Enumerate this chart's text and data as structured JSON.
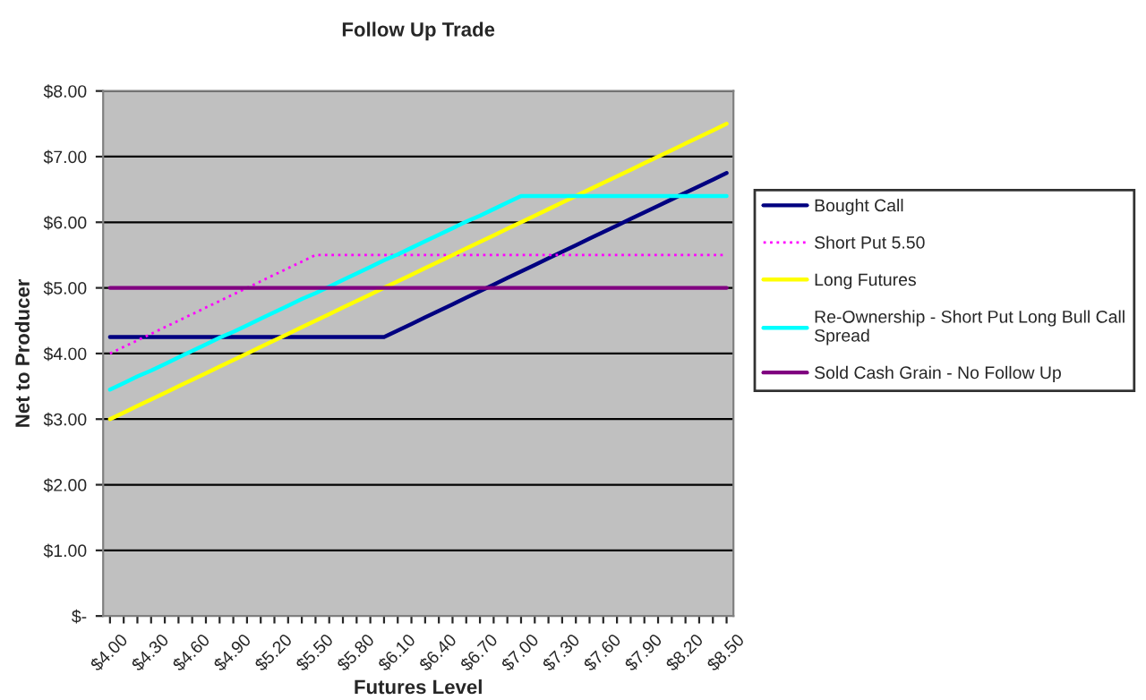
{
  "chart_data": {
    "type": "line",
    "title": "Follow Up Trade",
    "xlabel": "Futures Level",
    "ylabel": "Net to Producer",
    "categories": [
      "$4.00",
      null,
      null,
      "$4.30",
      null,
      null,
      "$4.60",
      null,
      null,
      "$4.90",
      null,
      null,
      "$5.20",
      null,
      null,
      "$5.50",
      null,
      null,
      "$5.80",
      null,
      null,
      "$6.10",
      null,
      null,
      "$6.40",
      null,
      null,
      "$6.70",
      null,
      null,
      "$7.00",
      null,
      null,
      "$7.30",
      null,
      null,
      "$7.60",
      null,
      null,
      "$7.90",
      null,
      null,
      "$8.20",
      null,
      null,
      "$8.50"
    ],
    "series": [
      {
        "name": "Bought Call",
        "color": "#000080",
        "line_style": "solid",
        "values": [
          4.25,
          4.25,
          4.25,
          4.25,
          4.25,
          4.25,
          4.25,
          4.25,
          4.25,
          4.25,
          4.25,
          4.25,
          4.25,
          4.25,
          4.25,
          4.25,
          4.25,
          4.25,
          4.25,
          4.25,
          4.25,
          4.35,
          4.45,
          4.55,
          4.65,
          4.75,
          4.85,
          4.95,
          5.05,
          5.15,
          5.25,
          5.35,
          5.45,
          5.55,
          5.65,
          5.75,
          5.85,
          5.95,
          6.05,
          6.15,
          6.25,
          6.35,
          6.45,
          6.55,
          6.65,
          6.75
        ]
      },
      {
        "name": "Short Put 5.50",
        "color": "#ff00ff",
        "line_style": "dotted",
        "values": [
          4.0,
          4.1,
          4.2,
          4.3,
          4.4,
          4.5,
          4.6,
          4.7,
          4.8,
          4.9,
          5.0,
          5.1,
          5.2,
          5.3,
          5.4,
          5.5,
          5.5,
          5.5,
          5.5,
          5.5,
          5.5,
          5.5,
          5.5,
          5.5,
          5.5,
          5.5,
          5.5,
          5.5,
          5.5,
          5.5,
          5.5,
          5.5,
          5.5,
          5.5,
          5.5,
          5.5,
          5.5,
          5.5,
          5.5,
          5.5,
          5.5,
          5.5,
          5.5,
          5.5,
          5.5,
          5.5
        ]
      },
      {
        "name": "Long Futures",
        "color": "#ffff00",
        "line_style": "solid",
        "values": [
          3.0,
          3.1,
          3.2,
          3.3,
          3.4,
          3.5,
          3.6,
          3.7,
          3.8,
          3.9,
          4.0,
          4.1,
          4.2,
          4.3,
          4.4,
          4.5,
          4.6,
          4.7,
          4.8,
          4.9,
          5.0,
          5.1,
          5.2,
          5.3,
          5.4,
          5.5,
          5.6,
          5.7,
          5.8,
          5.9,
          6.0,
          6.1,
          6.2,
          6.3,
          6.4,
          6.5,
          6.6,
          6.7,
          6.8,
          6.9,
          7.0,
          7.1,
          7.2,
          7.3,
          7.4,
          7.5
        ]
      },
      {
        "name": "Re-Ownership - Short Put Long Bull Call\nSpread",
        "color": "#00ffff",
        "line_style": "solid",
        "values": [
          3.45,
          3.55,
          3.65,
          3.74,
          3.84,
          3.94,
          4.04,
          4.14,
          4.24,
          4.33,
          4.43,
          4.53,
          4.63,
          4.73,
          4.83,
          4.92,
          5.02,
          5.12,
          5.22,
          5.32,
          5.42,
          5.51,
          5.61,
          5.71,
          5.81,
          5.91,
          6.01,
          6.1,
          6.2,
          6.3,
          6.4,
          6.4,
          6.4,
          6.4,
          6.4,
          6.4,
          6.4,
          6.4,
          6.4,
          6.4,
          6.4,
          6.4,
          6.4,
          6.4,
          6.4,
          6.4
        ]
      },
      {
        "name": "Sold Cash Grain - No Follow Up",
        "color": "#800080",
        "line_style": "solid",
        "values": [
          5.0,
          5.0,
          5.0,
          5.0,
          5.0,
          5.0,
          5.0,
          5.0,
          5.0,
          5.0,
          5.0,
          5.0,
          5.0,
          5.0,
          5.0,
          5.0,
          5.0,
          5.0,
          5.0,
          5.0,
          5.0,
          5.0,
          5.0,
          5.0,
          5.0,
          5.0,
          5.0,
          5.0,
          5.0,
          5.0,
          5.0,
          5.0,
          5.0,
          5.0,
          5.0,
          5.0,
          5.0,
          5.0,
          5.0,
          5.0,
          5.0,
          5.0,
          5.0,
          5.0,
          5.0,
          5.0
        ]
      }
    ],
    "ylim": [
      0,
      8
    ],
    "yticks": [
      {
        "value": 0,
        "label": "$-"
      },
      {
        "value": 1,
        "label": "$1.00"
      },
      {
        "value": 2,
        "label": "$2.00"
      },
      {
        "value": 3,
        "label": "$3.00"
      },
      {
        "value": 4,
        "label": "$4.00"
      },
      {
        "value": 5,
        "label": "$5.00"
      },
      {
        "value": 6,
        "label": "$6.00"
      },
      {
        "value": 7,
        "label": "$7.00"
      },
      {
        "value": 8,
        "label": "$8.00"
      }
    ],
    "grid": "y",
    "legend": "right",
    "marker": "none"
  }
}
